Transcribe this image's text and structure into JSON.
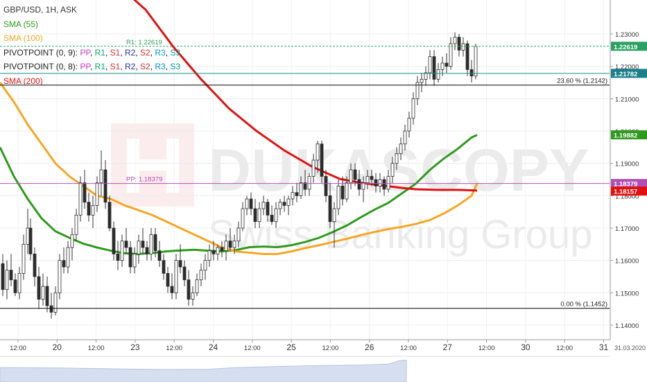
{
  "legend": {
    "title": "GBP/USD, 1H, ASK",
    "sma55": "SMA (55)",
    "sma100": "SMA (100)",
    "pivot1_prefix": "PIVOTPOINT (0, 9):",
    "pivot2_prefix": "PIVOTPOINT (0, 8):",
    "pivot_levels": [
      "PP",
      "R1",
      "S1",
      "R2",
      "S2",
      "R3",
      "S3"
    ],
    "sma200": "SMA (200)"
  },
  "watermark": {
    "brand": "DUKASCOPY",
    "tagline": "Swiss Banking Group"
  },
  "colors": {
    "sma55": "#2e9a1c",
    "sma100": "#f5a623",
    "sma200": "#e01010",
    "candle_up": "#2e8b2e",
    "candle_down": "#c0392b",
    "r1_line": "#3aa06a",
    "pp_line": "#b050b0",
    "pivot2_line": "#1b8a8a",
    "fib_line": "#000000"
  },
  "chart_data": {
    "type": "candlestick",
    "symbol": "GBP/USD",
    "timeframe": "1H",
    "side": "ASK",
    "ylim": [
      1.1355,
      1.2405
    ],
    "y_ticks": [
      "1.14000",
      "1.15000",
      "1.16000",
      "1.17000",
      "1.18000",
      "1.19000",
      "1.20000",
      "1.21000",
      "1.22000",
      "1.23000"
    ],
    "x_ticks": [
      "12:00",
      "20",
      "12:00",
      "23",
      "12:00",
      "24",
      "12:00",
      "25",
      "12:00",
      "26",
      "12:00",
      "27",
      "12:00",
      "30",
      "12:00",
      "31"
    ],
    "x_end_label": "31.03.2020",
    "levels": [
      {
        "name": "R1",
        "label": "R1: 1.22619",
        "value": 1.22619,
        "tag": "1.22619"
      },
      {
        "name": "PIVOTPOINT (0, 8)",
        "label": "",
        "value": 1.21782,
        "tag": "1.21782"
      },
      {
        "name": "fib_23.6",
        "label": "23.60 % (1.2142)",
        "value": 1.2142
      },
      {
        "name": "PP",
        "label": "PP: 1.18379",
        "value": 1.18379,
        "tag": "1.18379"
      },
      {
        "name": "fib_0",
        "label": "0.00 % (1.1452)",
        "value": 1.1452
      }
    ],
    "series_tags": [
      {
        "name": "SMA (55)",
        "value": 1.19882,
        "tag": "1.19882"
      },
      {
        "name": "SMA (200)",
        "value": 1.18157,
        "tag": "1.18157"
      }
    ],
    "sma": [
      {
        "name": "SMA (55)",
        "points": [
          [
            0,
            1.195
          ],
          [
            20,
            1.186
          ],
          [
            40,
            1.179
          ],
          [
            60,
            1.173
          ],
          [
            80,
            1.169
          ],
          [
            100,
            1.167
          ],
          [
            120,
            1.1652
          ],
          [
            140,
            1.164
          ],
          [
            160,
            1.163
          ],
          [
            180,
            1.1622
          ],
          [
            200,
            1.162
          ],
          [
            220,
            1.1623
          ],
          [
            240,
            1.1628
          ],
          [
            260,
            1.1631
          ],
          [
            280,
            1.1633
          ],
          [
            300,
            1.163
          ],
          [
            320,
            1.1628
          ],
          [
            340,
            1.1632
          ],
          [
            360,
            1.1641
          ],
          [
            380,
            1.1643
          ],
          [
            400,
            1.1641
          ],
          [
            420,
            1.1647
          ],
          [
            440,
            1.1657
          ],
          [
            460,
            1.167
          ],
          [
            480,
            1.1688
          ],
          [
            500,
            1.1708
          ],
          [
            520,
            1.1733
          ],
          [
            540,
            1.1757
          ],
          [
            560,
            1.1778
          ],
          [
            580,
            1.1808
          ],
          [
            600,
            1.1838
          ],
          [
            620,
            1.188
          ],
          [
            640,
            1.1915
          ],
          [
            660,
            1.1945
          ],
          [
            680,
            1.198
          ],
          [
            688,
            1.1988
          ]
        ]
      },
      {
        "name": "SMA (100)",
        "points": [
          [
            0,
            1.215
          ],
          [
            20,
            1.209
          ],
          [
            40,
            1.202
          ],
          [
            60,
            1.196
          ],
          [
            80,
            1.19
          ],
          [
            100,
            1.186
          ],
          [
            120,
            1.183
          ],
          [
            140,
            1.18
          ],
          [
            160,
            1.179
          ],
          [
            180,
            1.177
          ],
          [
            200,
            1.1755
          ],
          [
            220,
            1.174
          ],
          [
            240,
            1.172
          ],
          [
            260,
            1.17
          ],
          [
            280,
            1.168
          ],
          [
            300,
            1.166
          ],
          [
            320,
            1.164
          ],
          [
            340,
            1.1628
          ],
          [
            360,
            1.1624
          ],
          [
            380,
            1.162
          ],
          [
            400,
            1.162
          ],
          [
            420,
            1.1628
          ],
          [
            440,
            1.1638
          ],
          [
            460,
            1.1647
          ],
          [
            480,
            1.1657
          ],
          [
            500,
            1.1667
          ],
          [
            520,
            1.1678
          ],
          [
            540,
            1.1688
          ],
          [
            560,
            1.1697
          ],
          [
            580,
            1.1704
          ],
          [
            600,
            1.1713
          ],
          [
            620,
            1.1725
          ],
          [
            640,
            1.1745
          ],
          [
            660,
            1.177
          ],
          [
            680,
            1.18
          ],
          [
            688,
            1.1838
          ]
        ]
      },
      {
        "name": "SMA (200)",
        "points": [
          [
            0,
            1.27
          ],
          [
            60,
            1.264
          ],
          [
            110,
            1.256
          ],
          [
            160,
            1.247
          ],
          [
            210,
            1.2375
          ],
          [
            250,
            1.226
          ],
          [
            290,
            1.216
          ],
          [
            330,
            1.207
          ],
          [
            370,
            1.2
          ],
          [
            410,
            1.194
          ],
          [
            450,
            1.189
          ],
          [
            490,
            1.1852
          ],
          [
            520,
            1.184
          ],
          [
            550,
            1.1832
          ],
          [
            580,
            1.1824
          ],
          [
            600,
            1.182
          ],
          [
            630,
            1.1818
          ],
          [
            660,
            1.1818
          ],
          [
            688,
            1.1816
          ]
        ]
      }
    ],
    "candles_note": "hourly candles, approximate",
    "candles": [
      [
        4,
        1.159,
        1.162,
        1.149,
        1.151
      ],
      [
        10,
        1.151,
        1.16,
        1.148,
        1.157
      ],
      [
        16,
        1.157,
        1.162,
        1.152,
        1.154
      ],
      [
        22,
        1.154,
        1.156,
        1.149,
        1.15
      ],
      [
        28,
        1.15,
        1.158,
        1.148,
        1.156
      ],
      [
        34,
        1.156,
        1.168,
        1.154,
        1.165
      ],
      [
        40,
        1.165,
        1.176,
        1.162,
        1.17
      ],
      [
        44,
        1.17,
        1.173,
        1.16,
        1.162
      ],
      [
        50,
        1.162,
        1.164,
        1.152,
        1.155
      ],
      [
        56,
        1.155,
        1.158,
        1.145,
        1.148
      ],
      [
        62,
        1.148,
        1.156,
        1.146,
        1.152
      ],
      [
        68,
        1.152,
        1.155,
        1.144,
        1.146
      ],
      [
        74,
        1.146,
        1.15,
        1.142,
        1.144
      ],
      [
        80,
        1.144,
        1.152,
        1.143,
        1.15
      ],
      [
        86,
        1.15,
        1.162,
        1.148,
        1.16
      ],
      [
        92,
        1.16,
        1.164,
        1.156,
        1.158
      ],
      [
        98,
        1.158,
        1.166,
        1.156,
        1.164
      ],
      [
        104,
        1.164,
        1.17,
        1.16,
        1.168
      ],
      [
        110,
        1.168,
        1.176,
        1.166,
        1.174
      ],
      [
        116,
        1.174,
        1.186,
        1.172,
        1.184
      ],
      [
        122,
        1.184,
        1.188,
        1.176,
        1.178
      ],
      [
        128,
        1.178,
        1.181,
        1.172,
        1.174
      ],
      [
        134,
        1.174,
        1.18,
        1.17,
        1.177
      ],
      [
        140,
        1.177,
        1.186,
        1.175,
        1.184
      ],
      [
        146,
        1.184,
        1.194,
        1.18,
        1.188
      ],
      [
        152,
        1.188,
        1.191,
        1.176,
        1.178
      ],
      [
        158,
        1.178,
        1.18,
        1.169,
        1.17
      ],
      [
        164,
        1.17,
        1.172,
        1.16,
        1.162
      ],
      [
        170,
        1.162,
        1.166,
        1.157,
        1.16
      ],
      [
        176,
        1.16,
        1.168,
        1.158,
        1.166
      ],
      [
        182,
        1.166,
        1.17,
        1.162,
        1.164
      ],
      [
        188,
        1.164,
        1.166,
        1.156,
        1.158
      ],
      [
        194,
        1.158,
        1.164,
        1.156,
        1.162
      ],
      [
        200,
        1.162,
        1.168,
        1.159,
        1.166
      ],
      [
        206,
        1.166,
        1.17,
        1.162,
        1.164
      ],
      [
        212,
        1.164,
        1.166,
        1.16,
        1.162
      ],
      [
        218,
        1.162,
        1.17,
        1.16,
        1.168
      ],
      [
        224,
        1.168,
        1.17,
        1.161,
        1.163
      ],
      [
        230,
        1.163,
        1.166,
        1.158,
        1.16
      ],
      [
        236,
        1.16,
        1.162,
        1.154,
        1.156
      ],
      [
        242,
        1.156,
        1.158,
        1.15,
        1.152
      ],
      [
        248,
        1.152,
        1.156,
        1.148,
        1.15
      ],
      [
        254,
        1.15,
        1.162,
        1.148,
        1.16
      ],
      [
        260,
        1.16,
        1.165,
        1.156,
        1.158
      ],
      [
        266,
        1.158,
        1.16,
        1.152,
        1.154
      ],
      [
        272,
        1.154,
        1.157,
        1.146,
        1.148
      ],
      [
        278,
        1.148,
        1.152,
        1.146,
        1.15
      ],
      [
        284,
        1.15,
        1.156,
        1.149,
        1.154
      ],
      [
        290,
        1.154,
        1.159,
        1.152,
        1.157
      ],
      [
        296,
        1.157,
        1.162,
        1.154,
        1.16
      ],
      [
        302,
        1.16,
        1.165,
        1.158,
        1.163
      ],
      [
        308,
        1.163,
        1.166,
        1.16,
        1.162
      ],
      [
        314,
        1.162,
        1.165,
        1.16,
        1.164
      ],
      [
        320,
        1.164,
        1.166,
        1.161,
        1.163
      ],
      [
        326,
        1.163,
        1.168,
        1.16,
        1.166
      ],
      [
        332,
        1.166,
        1.17,
        1.163,
        1.164
      ],
      [
        338,
        1.164,
        1.168,
        1.162,
        1.166
      ],
      [
        344,
        1.166,
        1.172,
        1.164,
        1.17
      ],
      [
        350,
        1.17,
        1.178,
        1.169,
        1.176
      ],
      [
        356,
        1.176,
        1.18,
        1.174,
        1.179
      ],
      [
        362,
        1.179,
        1.181,
        1.174,
        1.176
      ],
      [
        368,
        1.176,
        1.179,
        1.17,
        1.172
      ],
      [
        374,
        1.172,
        1.178,
        1.17,
        1.176
      ],
      [
        380,
        1.176,
        1.18,
        1.174,
        1.178
      ],
      [
        386,
        1.178,
        1.179,
        1.172,
        1.174
      ],
      [
        392,
        1.174,
        1.177,
        1.171,
        1.172
      ],
      [
        398,
        1.172,
        1.178,
        1.17,
        1.176
      ],
      [
        404,
        1.176,
        1.179,
        1.174,
        1.178
      ],
      [
        410,
        1.178,
        1.18,
        1.175,
        1.177
      ],
      [
        416,
        1.177,
        1.18,
        1.174,
        1.179
      ],
      [
        422,
        1.179,
        1.183,
        1.177,
        1.181
      ],
      [
        428,
        1.181,
        1.184,
        1.178,
        1.18
      ],
      [
        434,
        1.18,
        1.186,
        1.179,
        1.184
      ],
      [
        440,
        1.184,
        1.188,
        1.18,
        1.182
      ],
      [
        446,
        1.182,
        1.187,
        1.18,
        1.186
      ],
      [
        452,
        1.186,
        1.193,
        1.184,
        1.191
      ],
      [
        458,
        1.191,
        1.197,
        1.187,
        1.196
      ],
      [
        464,
        1.196,
        1.197,
        1.184,
        1.186
      ],
      [
        470,
        1.186,
        1.188,
        1.178,
        1.18
      ],
      [
        476,
        1.18,
        1.184,
        1.17,
        1.172
      ],
      [
        482,
        1.172,
        1.178,
        1.164,
        1.176
      ],
      [
        488,
        1.176,
        1.185,
        1.174,
        1.183
      ],
      [
        494,
        1.183,
        1.186,
        1.177,
        1.179
      ],
      [
        500,
        1.179,
        1.186,
        1.178,
        1.184
      ],
      [
        506,
        1.184,
        1.19,
        1.182,
        1.188
      ],
      [
        512,
        1.188,
        1.19,
        1.183,
        1.185
      ],
      [
        518,
        1.185,
        1.188,
        1.18,
        1.182
      ],
      [
        524,
        1.182,
        1.186,
        1.178,
        1.184
      ],
      [
        530,
        1.184,
        1.188,
        1.182,
        1.186
      ],
      [
        536,
        1.186,
        1.188,
        1.183,
        1.185
      ],
      [
        542,
        1.185,
        1.187,
        1.181,
        1.183
      ],
      [
        548,
        1.183,
        1.187,
        1.181,
        1.185
      ],
      [
        554,
        1.185,
        1.186,
        1.18,
        1.182
      ],
      [
        560,
        1.182,
        1.188,
        1.181,
        1.186
      ],
      [
        566,
        1.186,
        1.192,
        1.184,
        1.19
      ],
      [
        572,
        1.19,
        1.195,
        1.188,
        1.193
      ],
      [
        578,
        1.193,
        1.198,
        1.191,
        1.196
      ],
      [
        584,
        1.196,
        1.202,
        1.194,
        1.2
      ],
      [
        590,
        1.2,
        1.206,
        1.198,
        1.204
      ],
      [
        596,
        1.204,
        1.212,
        1.202,
        1.21
      ],
      [
        602,
        1.21,
        1.217,
        1.208,
        1.215
      ],
      [
        608,
        1.215,
        1.218,
        1.212,
        1.216
      ],
      [
        614,
        1.216,
        1.22,
        1.214,
        1.218
      ],
      [
        620,
        1.218,
        1.225,
        1.216,
        1.223
      ],
      [
        626,
        1.223,
        1.225,
        1.214,
        1.216
      ],
      [
        632,
        1.216,
        1.221,
        1.215,
        1.219
      ],
      [
        638,
        1.219,
        1.223,
        1.217,
        1.221
      ],
      [
        644,
        1.221,
        1.224,
        1.218,
        1.22
      ],
      [
        650,
        1.22,
        1.229,
        1.219,
        1.227
      ],
      [
        656,
        1.227,
        1.2305,
        1.225,
        1.229
      ],
      [
        662,
        1.229,
        1.23,
        1.223,
        1.225
      ],
      [
        668,
        1.225,
        1.229,
        1.223,
        1.227
      ],
      [
        674,
        1.227,
        1.228,
        1.217,
        1.219
      ],
      [
        680,
        1.219,
        1.222,
        1.215,
        1.217
      ],
      [
        686,
        1.217,
        1.227,
        1.216,
        1.2262
      ]
    ],
    "volume_profile": [
      [
        0,
        0.58
      ],
      [
        60,
        0.57
      ],
      [
        120,
        0.55
      ],
      [
        180,
        0.52
      ],
      [
        240,
        0.5
      ],
      [
        300,
        0.51
      ],
      [
        340,
        0.58
      ],
      [
        400,
        0.62
      ],
      [
        460,
        0.66
      ],
      [
        520,
        0.68
      ],
      [
        560,
        0.72
      ],
      [
        575,
        0.85
      ],
      [
        586,
        0.88
      ],
      [
        586,
        0.0
      ]
    ]
  }
}
